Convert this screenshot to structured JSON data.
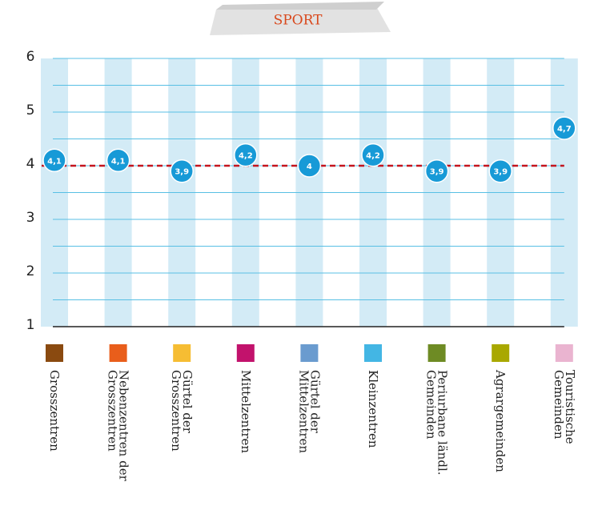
{
  "chart_data": {
    "type": "dot",
    "title": "SPORT",
    "categories": [
      "Grosszentren",
      "Nebenzentren der Grosszentren",
      "Gürtel der Grosszentren",
      "Mittelzentren",
      "Gürtel der Mittelzentren",
      "Kleinzentren",
      "Periurbane ländl. Gemeinden",
      "Agrargemeinden",
      "Touristische Gemeinden"
    ],
    "category_colors": [
      "#8a4a10",
      "#e95e1b",
      "#f6bd33",
      "#c2126c",
      "#6a9bcf",
      "#43b6e4",
      "#6e8b24",
      "#a9a800",
      "#eab4d0"
    ],
    "values": [
      4.1,
      4.1,
      3.9,
      4.2,
      4,
      4.2,
      3.9,
      3.9,
      4.7
    ],
    "value_labels": [
      "4,1",
      "4,1",
      "3,9",
      "4,2",
      "4",
      "4,2",
      "3,9",
      "3,9",
      "4,7"
    ],
    "color": "#179ad7",
    "reference_line": 4,
    "ylim": [
      1,
      6
    ],
    "yticks": [
      1,
      2,
      3,
      4,
      5,
      6
    ],
    "minor_yticks": [
      1.5,
      2.5,
      3.5,
      4.5,
      5.5
    ],
    "grid": true
  }
}
